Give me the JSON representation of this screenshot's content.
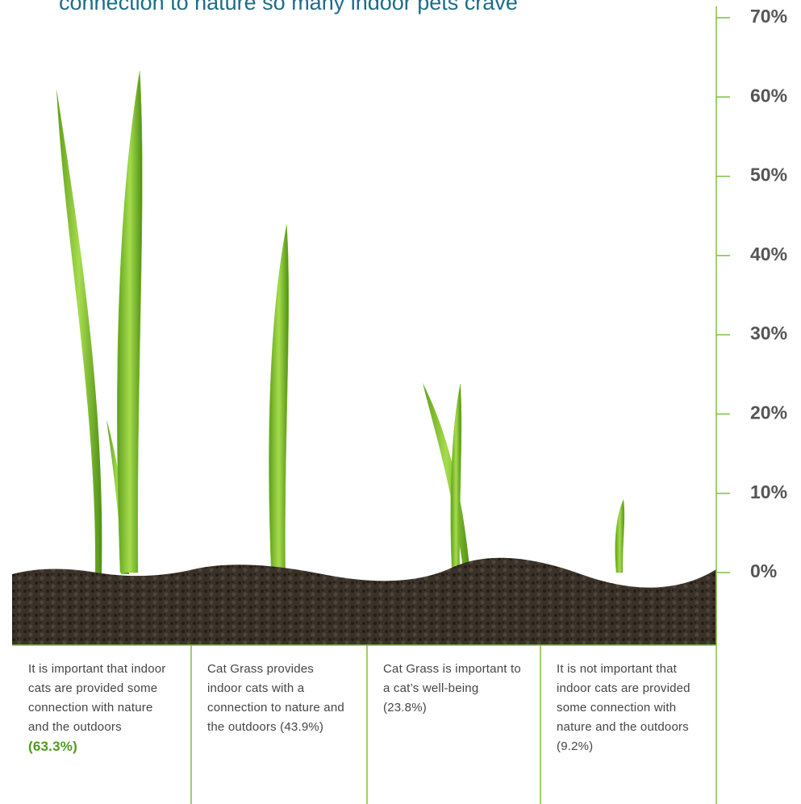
{
  "chart_data": {
    "type": "bar",
    "title": "connection to nature so many indoor pets crave",
    "categories": [
      "It is important that indoor cats are provided some connection with nature and the outdoors",
      "Cat Grass provides indoor cats with a connection to nature and the outdoors",
      "Cat Grass is important to a cat’s well-being",
      "It is not important that indoor cats are provided some connection with nature and the outdoors"
    ],
    "values": [
      63.3,
      43.9,
      23.8,
      9.2
    ],
    "value_labels": [
      "(63.3%)",
      "(43.9%)",
      "(23.8%)",
      "(9.2%)"
    ],
    "color": "#7cc62a",
    "axis_color": "#7cc142",
    "ylim": [
      0,
      70
    ],
    "yticks": [
      {
        "value": 0,
        "label": "0%"
      },
      {
        "value": 10,
        "label": "10%"
      },
      {
        "value": 20,
        "label": "20%"
      },
      {
        "value": 30,
        "label": "30%"
      },
      {
        "value": 40,
        "label": "40%"
      },
      {
        "value": 50,
        "label": "50%"
      },
      {
        "value": 60,
        "label": "60%"
      },
      {
        "value": 70,
        "label": "70%"
      }
    ]
  }
}
